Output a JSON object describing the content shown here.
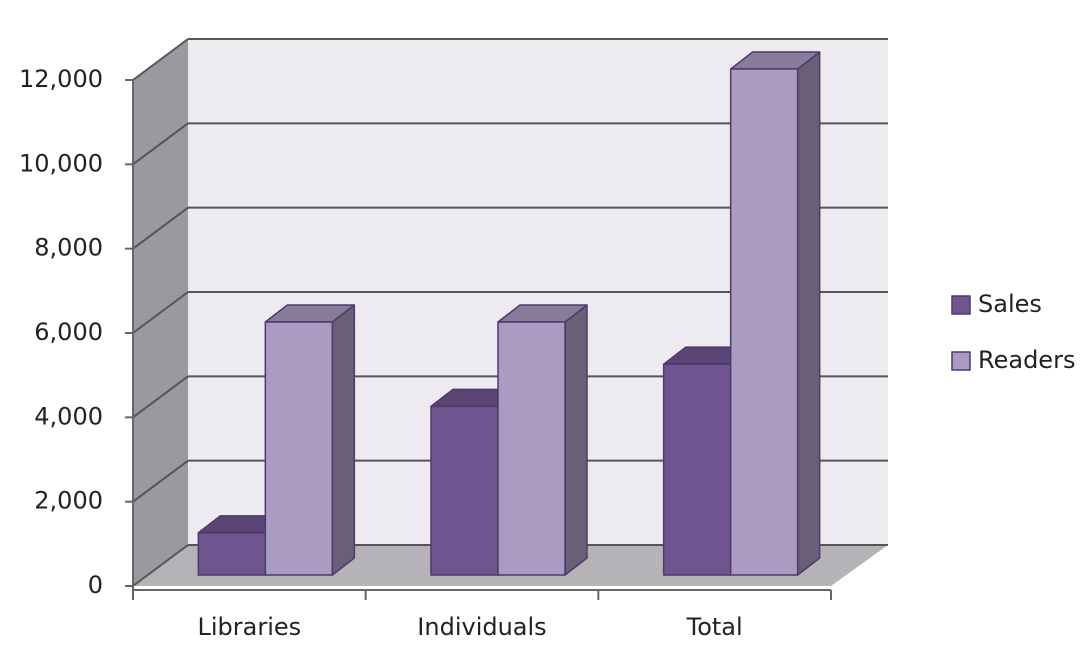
{
  "chart_data": {
    "type": "bar3d",
    "categories": [
      "Libraries",
      "Individuals",
      "Total"
    ],
    "series": [
      {
        "name": "Sales",
        "color": "#6f5590",
        "values": [
          1000,
          4000,
          5000
        ]
      },
      {
        "name": "Readers",
        "color": "#aa9bc2",
        "values": [
          6000,
          6000,
          12000
        ]
      }
    ],
    "ylim": [
      0,
      12000
    ],
    "yticks": [
      0,
      {
        "value": 2000,
        "label": "2,000"
      },
      {
        "value": 4000,
        "label": "4,000"
      },
      {
        "value": 6000,
        "label": "6,000"
      },
      {
        "value": 8000,
        "label": "8,000"
      },
      {
        "value": 10000,
        "label": "10,000"
      },
      {
        "value": 12000,
        "label": "12,000"
      }
    ],
    "grid": true,
    "legend": "right"
  }
}
